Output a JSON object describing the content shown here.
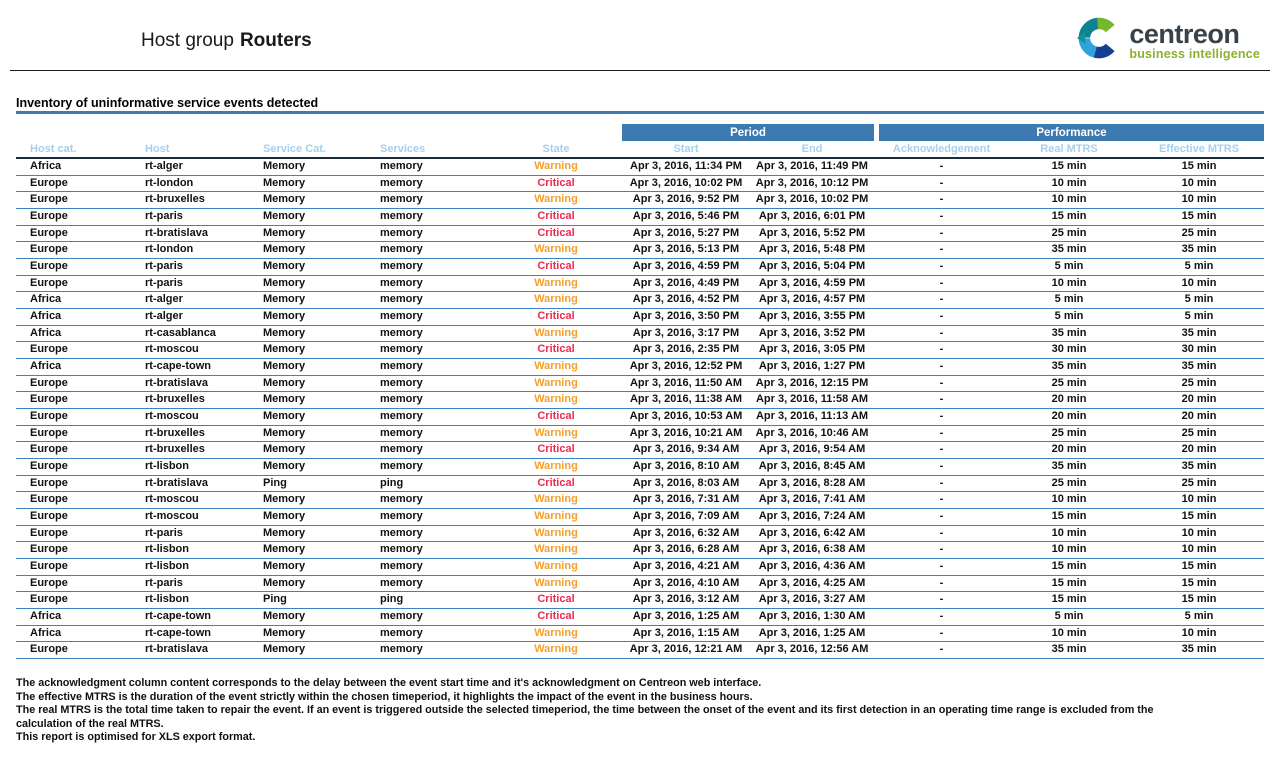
{
  "header": {
    "title_prefix": "Host group",
    "title_value": "Routers",
    "logo": {
      "brand": "centreon",
      "tagline": "business intelligence"
    }
  },
  "section": {
    "title": "Inventory of uninformative service events detected"
  },
  "table": {
    "group_headers": {
      "period": "Period",
      "performance": "Performance"
    },
    "columns": [
      "Host cat.",
      "Host",
      "Service Cat.",
      "Services",
      "State",
      "Start",
      "End",
      "Acknowledgement",
      "Real MTRS",
      "Effective MTRS"
    ],
    "rows": [
      {
        "host_cat": "Africa",
        "host": "rt-alger",
        "service_cat": "Memory",
        "service": "memory",
        "state": "Warning",
        "start": "Apr 3, 2016, 11:34 PM",
        "end": "Apr 3, 2016, 11:49 PM",
        "ack": "-",
        "real_mtrs": "15 min",
        "effective_mtrs": "15 min"
      },
      {
        "host_cat": "Europe",
        "host": "rt-london",
        "service_cat": "Memory",
        "service": "memory",
        "state": "Critical",
        "start": "Apr 3, 2016, 10:02 PM",
        "end": "Apr 3, 2016, 10:12 PM",
        "ack": "-",
        "real_mtrs": "10 min",
        "effective_mtrs": "10 min"
      },
      {
        "host_cat": "Europe",
        "host": "rt-bruxelles",
        "service_cat": "Memory",
        "service": "memory",
        "state": "Warning",
        "start": "Apr 3, 2016, 9:52 PM",
        "end": "Apr 3, 2016, 10:02 PM",
        "ack": "-",
        "real_mtrs": "10 min",
        "effective_mtrs": "10 min"
      },
      {
        "host_cat": "Europe",
        "host": "rt-paris",
        "service_cat": "Memory",
        "service": "memory",
        "state": "Critical",
        "start": "Apr 3, 2016, 5:46 PM",
        "end": "Apr 3, 2016, 6:01 PM",
        "ack": "-",
        "real_mtrs": "15 min",
        "effective_mtrs": "15 min"
      },
      {
        "host_cat": "Europe",
        "host": "rt-bratislava",
        "service_cat": "Memory",
        "service": "memory",
        "state": "Critical",
        "start": "Apr 3, 2016, 5:27 PM",
        "end": "Apr 3, 2016, 5:52 PM",
        "ack": "-",
        "real_mtrs": "25 min",
        "effective_mtrs": "25 min"
      },
      {
        "host_cat": "Europe",
        "host": "rt-london",
        "service_cat": "Memory",
        "service": "memory",
        "state": "Warning",
        "start": "Apr 3, 2016, 5:13 PM",
        "end": "Apr 3, 2016, 5:48 PM",
        "ack": "-",
        "real_mtrs": "35 min",
        "effective_mtrs": "35 min"
      },
      {
        "host_cat": "Europe",
        "host": "rt-paris",
        "service_cat": "Memory",
        "service": "memory",
        "state": "Critical",
        "start": "Apr 3, 2016, 4:59 PM",
        "end": "Apr 3, 2016, 5:04 PM",
        "ack": "-",
        "real_mtrs": "5 min",
        "effective_mtrs": "5 min"
      },
      {
        "host_cat": "Europe",
        "host": "rt-paris",
        "service_cat": "Memory",
        "service": "memory",
        "state": "Warning",
        "start": "Apr 3, 2016, 4:49 PM",
        "end": "Apr 3, 2016, 4:59 PM",
        "ack": "-",
        "real_mtrs": "10 min",
        "effective_mtrs": "10 min"
      },
      {
        "host_cat": "Africa",
        "host": "rt-alger",
        "service_cat": "Memory",
        "service": "memory",
        "state": "Warning",
        "start": "Apr 3, 2016, 4:52 PM",
        "end": "Apr 3, 2016, 4:57 PM",
        "ack": "-",
        "real_mtrs": "5 min",
        "effective_mtrs": "5 min"
      },
      {
        "host_cat": "Africa",
        "host": "rt-alger",
        "service_cat": "Memory",
        "service": "memory",
        "state": "Critical",
        "start": "Apr 3, 2016, 3:50 PM",
        "end": "Apr 3, 2016, 3:55 PM",
        "ack": "-",
        "real_mtrs": "5 min",
        "effective_mtrs": "5 min"
      },
      {
        "host_cat": "Africa",
        "host": "rt-casablanca",
        "service_cat": "Memory",
        "service": "memory",
        "state": "Warning",
        "start": "Apr 3, 2016, 3:17 PM",
        "end": "Apr 3, 2016, 3:52 PM",
        "ack": "-",
        "real_mtrs": "35 min",
        "effective_mtrs": "35 min"
      },
      {
        "host_cat": "Europe",
        "host": "rt-moscou",
        "service_cat": "Memory",
        "service": "memory",
        "state": "Critical",
        "start": "Apr 3, 2016, 2:35 PM",
        "end": "Apr 3, 2016, 3:05 PM",
        "ack": "-",
        "real_mtrs": "30 min",
        "effective_mtrs": "30 min"
      },
      {
        "host_cat": "Africa",
        "host": "rt-cape-town",
        "service_cat": "Memory",
        "service": "memory",
        "state": "Warning",
        "start": "Apr 3, 2016, 12:52 PM",
        "end": "Apr 3, 2016, 1:27 PM",
        "ack": "-",
        "real_mtrs": "35 min",
        "effective_mtrs": "35 min"
      },
      {
        "host_cat": "Europe",
        "host": "rt-bratislava",
        "service_cat": "Memory",
        "service": "memory",
        "state": "Warning",
        "start": "Apr 3, 2016, 11:50 AM",
        "end": "Apr 3, 2016, 12:15 PM",
        "ack": "-",
        "real_mtrs": "25 min",
        "effective_mtrs": "25 min"
      },
      {
        "host_cat": "Europe",
        "host": "rt-bruxelles",
        "service_cat": "Memory",
        "service": "memory",
        "state": "Warning",
        "start": "Apr 3, 2016, 11:38 AM",
        "end": "Apr 3, 2016, 11:58 AM",
        "ack": "-",
        "real_mtrs": "20 min",
        "effective_mtrs": "20 min"
      },
      {
        "host_cat": "Europe",
        "host": "rt-moscou",
        "service_cat": "Memory",
        "service": "memory",
        "state": "Critical",
        "start": "Apr 3, 2016, 10:53 AM",
        "end": "Apr 3, 2016, 11:13 AM",
        "ack": "-",
        "real_mtrs": "20 min",
        "effective_mtrs": "20 min"
      },
      {
        "host_cat": "Europe",
        "host": "rt-bruxelles",
        "service_cat": "Memory",
        "service": "memory",
        "state": "Warning",
        "start": "Apr 3, 2016, 10:21 AM",
        "end": "Apr 3, 2016, 10:46 AM",
        "ack": "-",
        "real_mtrs": "25 min",
        "effective_mtrs": "25 min"
      },
      {
        "host_cat": "Europe",
        "host": "rt-bruxelles",
        "service_cat": "Memory",
        "service": "memory",
        "state": "Critical",
        "start": "Apr 3, 2016, 9:34 AM",
        "end": "Apr 3, 2016, 9:54 AM",
        "ack": "-",
        "real_mtrs": "20 min",
        "effective_mtrs": "20 min"
      },
      {
        "host_cat": "Europe",
        "host": "rt-lisbon",
        "service_cat": "Memory",
        "service": "memory",
        "state": "Warning",
        "start": "Apr 3, 2016, 8:10 AM",
        "end": "Apr 3, 2016, 8:45 AM",
        "ack": "-",
        "real_mtrs": "35 min",
        "effective_mtrs": "35 min"
      },
      {
        "host_cat": "Europe",
        "host": "rt-bratislava",
        "service_cat": "Ping",
        "service": "ping",
        "state": "Critical",
        "start": "Apr 3, 2016, 8:03 AM",
        "end": "Apr 3, 2016, 8:28 AM",
        "ack": "-",
        "real_mtrs": "25 min",
        "effective_mtrs": "25 min"
      },
      {
        "host_cat": "Europe",
        "host": "rt-moscou",
        "service_cat": "Memory",
        "service": "memory",
        "state": "Warning",
        "start": "Apr 3, 2016, 7:31 AM",
        "end": "Apr 3, 2016, 7:41 AM",
        "ack": "-",
        "real_mtrs": "10 min",
        "effective_mtrs": "10 min"
      },
      {
        "host_cat": "Europe",
        "host": "rt-moscou",
        "service_cat": "Memory",
        "service": "memory",
        "state": "Warning",
        "start": "Apr 3, 2016, 7:09 AM",
        "end": "Apr 3, 2016, 7:24 AM",
        "ack": "-",
        "real_mtrs": "15 min",
        "effective_mtrs": "15 min"
      },
      {
        "host_cat": "Europe",
        "host": "rt-paris",
        "service_cat": "Memory",
        "service": "memory",
        "state": "Warning",
        "start": "Apr 3, 2016, 6:32 AM",
        "end": "Apr 3, 2016, 6:42 AM",
        "ack": "-",
        "real_mtrs": "10 min",
        "effective_mtrs": "10 min"
      },
      {
        "host_cat": "Europe",
        "host": "rt-lisbon",
        "service_cat": "Memory",
        "service": "memory",
        "state": "Warning",
        "start": "Apr 3, 2016, 6:28 AM",
        "end": "Apr 3, 2016, 6:38 AM",
        "ack": "-",
        "real_mtrs": "10 min",
        "effective_mtrs": "10 min"
      },
      {
        "host_cat": "Europe",
        "host": "rt-lisbon",
        "service_cat": "Memory",
        "service": "memory",
        "state": "Warning",
        "start": "Apr 3, 2016, 4:21 AM",
        "end": "Apr 3, 2016, 4:36 AM",
        "ack": "-",
        "real_mtrs": "15 min",
        "effective_mtrs": "15 min"
      },
      {
        "host_cat": "Europe",
        "host": "rt-paris",
        "service_cat": "Memory",
        "service": "memory",
        "state": "Warning",
        "start": "Apr 3, 2016, 4:10 AM",
        "end": "Apr 3, 2016, 4:25 AM",
        "ack": "-",
        "real_mtrs": "15 min",
        "effective_mtrs": "15 min"
      },
      {
        "host_cat": "Europe",
        "host": "rt-lisbon",
        "service_cat": "Ping",
        "service": "ping",
        "state": "Critical",
        "start": "Apr 3, 2016, 3:12 AM",
        "end": "Apr 3, 2016, 3:27 AM",
        "ack": "-",
        "real_mtrs": "15 min",
        "effective_mtrs": "15 min"
      },
      {
        "host_cat": "Africa",
        "host": "rt-cape-town",
        "service_cat": "Memory",
        "service": "memory",
        "state": "Critical",
        "start": "Apr 3, 2016, 1:25 AM",
        "end": "Apr 3, 2016, 1:30 AM",
        "ack": "-",
        "real_mtrs": "5 min",
        "effective_mtrs": "5 min"
      },
      {
        "host_cat": "Africa",
        "host": "rt-cape-town",
        "service_cat": "Memory",
        "service": "memory",
        "state": "Warning",
        "start": "Apr 3, 2016, 1:15 AM",
        "end": "Apr 3, 2016, 1:25 AM",
        "ack": "-",
        "real_mtrs": "10 min",
        "effective_mtrs": "10 min"
      },
      {
        "host_cat": "Europe",
        "host": "rt-bratislava",
        "service_cat": "Memory",
        "service": "memory",
        "state": "Warning",
        "start": "Apr 3, 2016, 12:21 AM",
        "end": "Apr 3, 2016, 12:56 AM",
        "ack": "-",
        "real_mtrs": "35 min",
        "effective_mtrs": "35 min"
      }
    ]
  },
  "footer": {
    "notes": [
      "The acknowledgment column content corresponds to the delay between the event start time and it's acknowledgment on Centreon web interface.",
      "The effective MTRS is the duration of the event strictly within the chosen timeperiod, it highlights the impact of the event in the business hours.",
      "The real MTRS is the total time taken to repair the event. If an event is triggered outside the selected timeperiod, the time between the onset of the event and its first detection in an operating time range is excluded from the",
      "calculation of the real MTRS.",
      "This report is optimised for XLS export format."
    ]
  },
  "colors": {
    "warning": "#f5a02c",
    "critical": "#ed2b52",
    "header_bar": "#3c7ab1",
    "subheader_text": "#a8d0ea",
    "row_border": "#3a82c0",
    "brand_dark": "#37424c",
    "brand_green": "#8db02e",
    "logo_green": "#76b82a",
    "logo_teal": "#0f8292",
    "logo_light_blue": "#2fa3dc",
    "logo_dark_blue": "#123f8f"
  }
}
